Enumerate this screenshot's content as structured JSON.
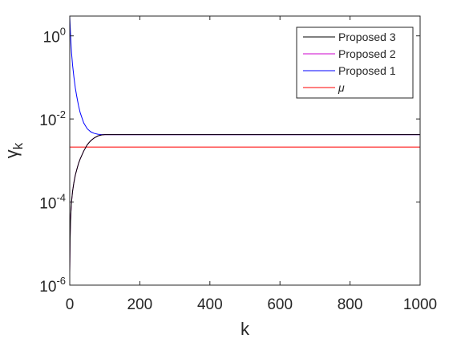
{
  "chart_data": {
    "type": "line",
    "title": "",
    "xlabel": "k",
    "ylabel": "γ",
    "ylabel_subscript": "k",
    "x_scale": "linear",
    "y_scale": "log",
    "xlim": [
      0,
      1000
    ],
    "ylim": [
      1e-06,
      3
    ],
    "x_ticks": [
      0,
      200,
      400,
      600,
      800,
      1000
    ],
    "x_tick_labels": [
      "0",
      "200",
      "400",
      "600",
      "800",
      "1000"
    ],
    "y_ticks": [
      1e-06,
      0.0001,
      0.01,
      1
    ],
    "y_tick_labels": [
      {
        "base": "10",
        "exp": "-6"
      },
      {
        "base": "10",
        "exp": "-4"
      },
      {
        "base": "10",
        "exp": "-2"
      },
      {
        "base": "10",
        "exp": "0"
      }
    ],
    "grid": false,
    "legend_position": "top-right",
    "series": [
      {
        "name": "Proposed 3",
        "color": "#000000",
        "x": [
          0,
          1,
          2,
          3,
          5,
          8,
          12,
          16,
          20,
          25,
          30,
          40,
          50,
          60,
          70,
          80,
          90,
          100,
          120,
          150,
          200,
          300,
          500,
          700,
          1000
        ],
        "y": [
          2e-06,
          1.2e-05,
          3e-05,
          5e-05,
          0.0001,
          0.00018,
          0.0003,
          0.00045,
          0.0006,
          0.00085,
          0.0011,
          0.0017,
          0.0024,
          0.003,
          0.0035,
          0.0039,
          0.0041,
          0.0042,
          0.0042,
          0.0042,
          0.0042,
          0.0042,
          0.0042,
          0.0042,
          0.0042
        ]
      },
      {
        "name": "Proposed 2",
        "color": "#cc00cc",
        "x": [
          0,
          1,
          2,
          3,
          5,
          8,
          12,
          16,
          20,
          25,
          30,
          40,
          50,
          60,
          70,
          80,
          90,
          100,
          120,
          150,
          200,
          300,
          500,
          700,
          1000
        ],
        "y": [
          2e-06,
          1.2e-05,
          3e-05,
          5e-05,
          0.0001,
          0.00018,
          0.0003,
          0.00045,
          0.0006,
          0.00085,
          0.0011,
          0.0017,
          0.0024,
          0.003,
          0.0035,
          0.0039,
          0.0041,
          0.0042,
          0.0042,
          0.0042,
          0.0042,
          0.0042,
          0.0042,
          0.0042,
          0.0042
        ]
      },
      {
        "name": "Proposed 1",
        "color": "#0000ff",
        "x": [
          0,
          1,
          2,
          3,
          5,
          8,
          12,
          16,
          20,
          25,
          30,
          40,
          50,
          60,
          70,
          80,
          90,
          100,
          120,
          150,
          200,
          300,
          500,
          700,
          1000
        ],
        "y": [
          3,
          1.9,
          1.2,
          0.8,
          0.4,
          0.2,
          0.1,
          0.055,
          0.035,
          0.021,
          0.014,
          0.008,
          0.0058,
          0.0049,
          0.0045,
          0.0043,
          0.0042,
          0.0042,
          0.0042,
          0.0042,
          0.0042,
          0.0042,
          0.0042,
          0.0042,
          0.0042
        ]
      },
      {
        "name": "μ",
        "color": "#ff0000",
        "x": [
          0,
          1000
        ],
        "y": [
          0.0021,
          0.0021
        ]
      }
    ]
  }
}
